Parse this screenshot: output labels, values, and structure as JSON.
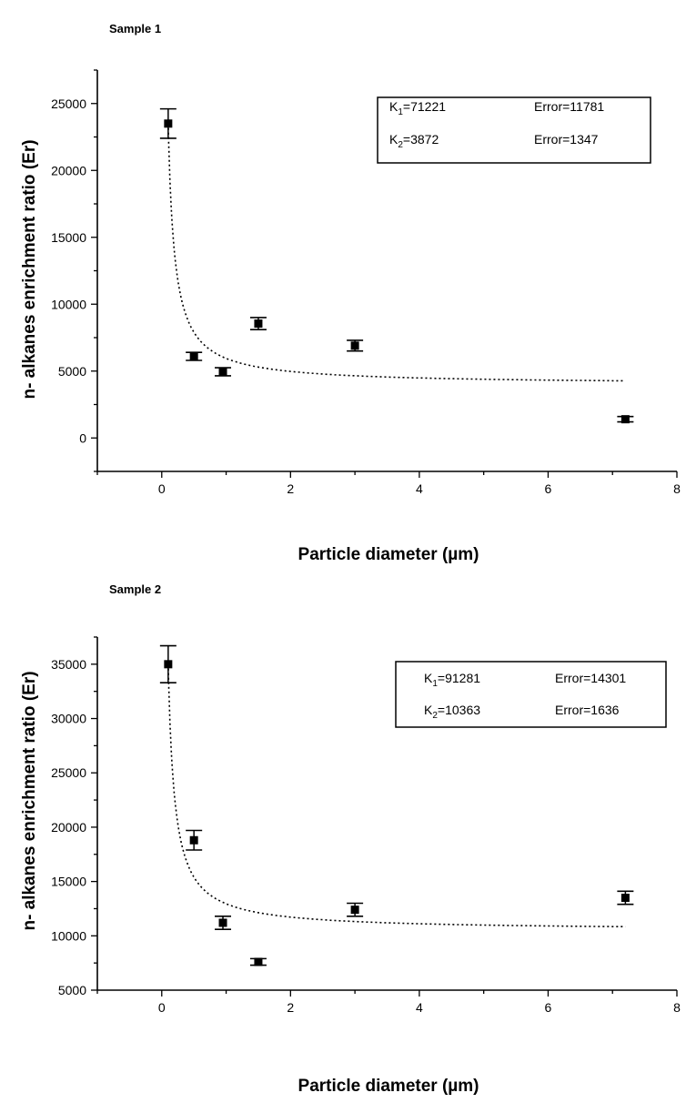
{
  "chart_data": [
    {
      "type": "scatter",
      "title": "Sample 1",
      "xlabel": "Particle diameter (µm)",
      "ylabel": "n- alkanes enrichment ratio (Er)",
      "xlim": [
        -1,
        8
      ],
      "ylim": [
        -2500,
        27500
      ],
      "xticks": [
        0,
        2,
        4,
        6,
        8
      ],
      "yticks": [
        0,
        5000,
        10000,
        15000,
        20000,
        25000
      ],
      "grid": false,
      "points": [
        {
          "x": 0.1,
          "y": 23500,
          "err": 1100
        },
        {
          "x": 0.5,
          "y": 6100,
          "err": 300
        },
        {
          "x": 0.95,
          "y": 4950,
          "err": 300
        },
        {
          "x": 1.5,
          "y": 8550,
          "err": 450
        },
        {
          "x": 3.0,
          "y": 6900,
          "err": 400
        },
        {
          "x": 7.2,
          "y": 1400,
          "err": 200
        }
      ],
      "fit": {
        "K1": 71221,
        "K2": 3872,
        "x_range": [
          0.1,
          7.2
        ]
      },
      "annotation": [
        {
          "k_symbol": "K",
          "k_sub": "1",
          "k_rest": "=71221",
          "error": "Error=11781"
        },
        {
          "k_symbol": "K",
          "k_sub": "2",
          "k_rest": "=3872",
          "error": "Error=1347"
        }
      ]
    },
    {
      "type": "scatter",
      "title": "Sample 2",
      "xlabel": "Particle diameter (µm)",
      "ylabel": "n- alkanes enrichment ratio (Er)",
      "xlim": [
        -1,
        8
      ],
      "ylim": [
        5000,
        37500
      ],
      "xticks": [
        0,
        2,
        4,
        6,
        8
      ],
      "yticks": [
        5000,
        10000,
        15000,
        20000,
        25000,
        30000,
        35000
      ],
      "grid": false,
      "points": [
        {
          "x": 0.1,
          "y": 35000,
          "err": 1700
        },
        {
          "x": 0.5,
          "y": 18800,
          "err": 900
        },
        {
          "x": 0.95,
          "y": 11200,
          "err": 600
        },
        {
          "x": 1.5,
          "y": 7600,
          "err": 300
        },
        {
          "x": 3.0,
          "y": 12400,
          "err": 600
        },
        {
          "x": 7.2,
          "y": 13500,
          "err": 600
        }
      ],
      "fit": {
        "K1": 91281,
        "K2": 10363,
        "x_range": [
          0.1,
          7.2
        ]
      },
      "annotation": [
        {
          "k_symbol": "K",
          "k_sub": "1",
          "k_rest": "=91281",
          "error": "Error=14301"
        },
        {
          "k_symbol": "K",
          "k_sub": "2",
          "k_rest": "=10363",
          "error": "Error=1636"
        }
      ]
    }
  ]
}
